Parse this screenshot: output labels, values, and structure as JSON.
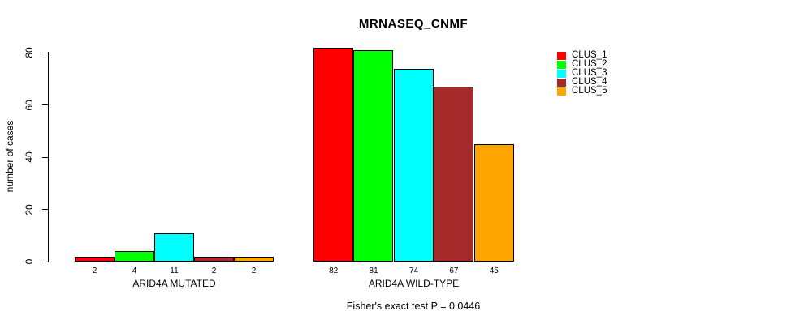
{
  "title": "MRNASEQ_CNMF",
  "footnote": "Fisher's exact test P = 0.0446",
  "chart_data": {
    "type": "bar",
    "title": "MRNASEQ_CNMF",
    "ylabel": "number of cases",
    "xlabel": "",
    "ylim": [
      0,
      80
    ],
    "yticks": [
      "0",
      "20",
      "40",
      "60",
      "80"
    ],
    "ytick_values": [
      0,
      20,
      40,
      60,
      80
    ],
    "grid": false,
    "legend_position": "right",
    "categories": [
      "ARID4A MUTATED",
      "ARID4A WILD-TYPE"
    ],
    "groups": [
      {
        "label": "ARID4A MUTATED",
        "values": [
          2,
          4,
          11,
          2,
          2
        ],
        "value_labels": [
          "2",
          "4",
          "11",
          "2",
          "2"
        ]
      },
      {
        "label": "ARID4A WILD-TYPE",
        "values": [
          82,
          81,
          74,
          67,
          45
        ],
        "value_labels": [
          "82",
          "81",
          "74",
          "67",
          "45"
        ]
      }
    ],
    "series": [
      {
        "name": "CLUS_1",
        "color": "#FF0000",
        "values": [
          2,
          82
        ]
      },
      {
        "name": "CLUS_2",
        "color": "#00FF00",
        "values": [
          4,
          81
        ]
      },
      {
        "name": "CLUS_3",
        "color": "#00FFFF",
        "values": [
          11,
          74
        ]
      },
      {
        "name": "CLUS_4",
        "color": "#A52A2A",
        "values": [
          2,
          67
        ]
      },
      {
        "name": "CLUS_5",
        "color": "#FFA500",
        "values": [
          2,
          45
        ]
      }
    ],
    "annotation": "Fisher's exact test P = 0.0446"
  }
}
